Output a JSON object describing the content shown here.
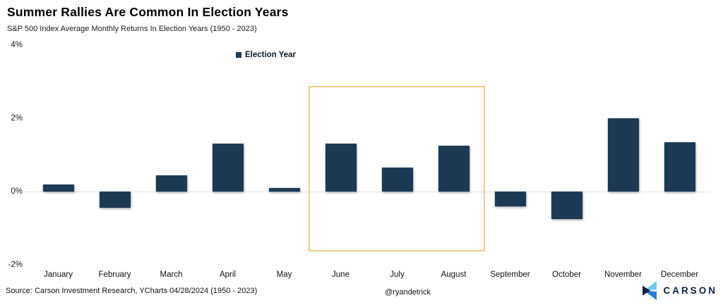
{
  "title": "Summer Rallies Are Common In Election Years",
  "subtitle": "S&P 500 Index Average Monthly Returns In Election Years (1950 - 2023)",
  "legend": {
    "label": "Election Year"
  },
  "footer": {
    "source": "Source: Carson Investment Research, YCharts 04/28/2024 (1950 - 2023)",
    "handle": "@ryandetrick",
    "brand": "CARSON"
  },
  "colors": {
    "bar": "#1C3A54",
    "highlight_border": "#ECCE8D",
    "zero_line": "#E2E2E2",
    "brand_navy": "#0D2440",
    "brand_light_blue": "#6EC9F2",
    "brand_mid_blue": "#2B7CD0"
  },
  "chart_data": {
    "type": "bar",
    "title": "Summer Rallies Are Common In Election Years",
    "subtitle": "S&P 500 Index Average Monthly Returns In Election Years (1950 - 2023)",
    "categories": [
      "January",
      "February",
      "March",
      "April",
      "May",
      "June",
      "July",
      "August",
      "September",
      "October",
      "November",
      "December"
    ],
    "series": [
      {
        "name": "Election Year",
        "values": [
          0.2,
          -0.45,
          0.45,
          1.3,
          0.1,
          1.3,
          0.65,
          1.25,
          -0.4,
          -0.75,
          2.0,
          1.35
        ]
      }
    ],
    "xlabel": "",
    "ylabel": "",
    "ylim": [
      -2,
      4
    ],
    "yticks": [
      {
        "label": "4%",
        "value": 4
      },
      {
        "label": "2%",
        "value": 2
      },
      {
        "label": "0%",
        "value": 0
      },
      {
        "label": "-2%",
        "value": -2
      }
    ],
    "grid": "zero-line-only",
    "legend_position": "top-center",
    "highlight": {
      "from": "June",
      "to": "August",
      "note": "summer months box"
    }
  }
}
